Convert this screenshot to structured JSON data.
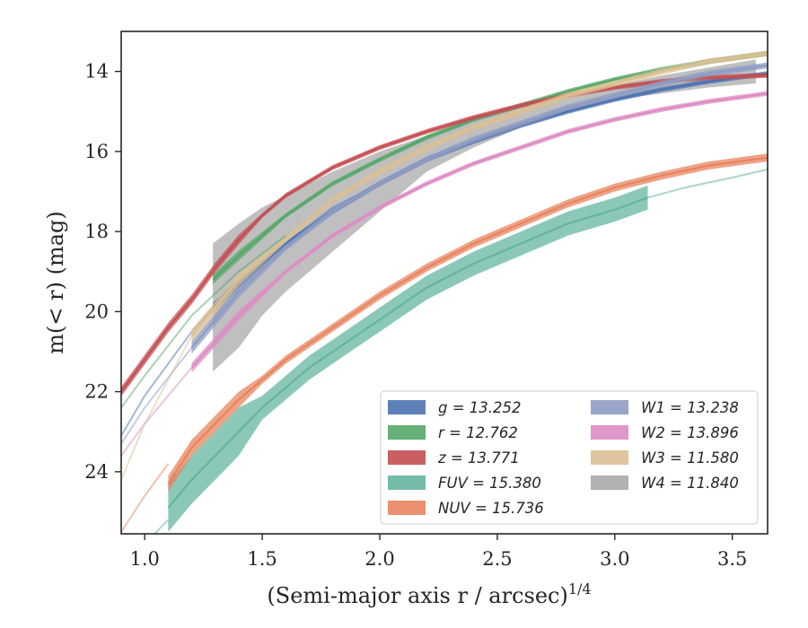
{
  "chart_data": {
    "type": "line",
    "title": "",
    "xlabel": "(Semi-major axis r / arcsec)",
    "xlabel_sup": "1/4",
    "ylabel": "m(< r) (mag)",
    "xlim": [
      0.9,
      3.65
    ],
    "ylim": [
      25.55,
      13.0
    ],
    "y_inverted": true,
    "grid": false,
    "legend_position": "lower-right",
    "x_ticks": [
      "1.0",
      "1.5",
      "2.0",
      "2.5",
      "3.0",
      "3.5"
    ],
    "y_ticks": [
      "14",
      "16",
      "18",
      "20",
      "22",
      "24"
    ],
    "series": [
      {
        "name": "g = 13.252",
        "color": "#4c72b0",
        "band": 0.12,
        "lower_x": [
          0.9,
          1.0,
          1.2,
          1.4,
          1.6,
          1.8,
          2.0
        ],
        "lower_y": [
          23.1,
          22.1,
          20.5,
          19.2,
          18.3,
          17.4,
          16.8
        ],
        "x": [
          1.29,
          1.4,
          1.6,
          1.8,
          2.0,
          2.2,
          2.4,
          2.6,
          2.8,
          3.0,
          3.2,
          3.4,
          3.65
        ],
        "y": [
          19.9,
          19.3,
          18.3,
          17.5,
          16.8,
          16.2,
          15.75,
          15.35,
          15.0,
          14.7,
          14.45,
          14.25,
          14.05
        ]
      },
      {
        "name": "r = 12.762",
        "color": "#55a868",
        "band": 0.12,
        "lower_x": [
          0.9,
          1.0,
          1.2,
          1.4,
          1.6
        ],
        "lower_y": [
          22.4,
          21.6,
          20.1,
          19.0,
          18.1
        ],
        "x": [
          1.29,
          1.4,
          1.6,
          1.8,
          2.0,
          2.2,
          2.4,
          2.6,
          2.8,
          3.0,
          3.2,
          3.4,
          3.65
        ],
        "y": [
          19.2,
          18.6,
          17.6,
          16.8,
          16.2,
          15.65,
          15.2,
          14.85,
          14.5,
          14.2,
          13.95,
          13.75,
          13.55
        ]
      },
      {
        "name": "z = 13.771",
        "color": "#c44e52",
        "band": 0.12,
        "lower_x": [],
        "lower_y": [],
        "x": [
          0.9,
          1.0,
          1.1,
          1.2,
          1.3,
          1.4,
          1.5,
          1.6,
          1.8,
          2.0,
          2.2,
          2.4,
          2.6,
          2.8,
          3.0,
          3.2,
          3.4,
          3.65
        ],
        "y": [
          22.0,
          21.2,
          20.4,
          19.7,
          18.9,
          18.2,
          17.6,
          17.1,
          16.4,
          15.9,
          15.5,
          15.15,
          14.85,
          14.6,
          14.4,
          14.25,
          14.15,
          14.1
        ]
      },
      {
        "name": "FUV = 15.380",
        "color": "#64b5a0",
        "band": 0.6,
        "lower_x": [
          0.9,
          1.0,
          1.1
        ],
        "lower_y": [
          26.3,
          25.8,
          25.2
        ],
        "x": [
          1.1,
          1.2,
          1.3,
          1.4,
          1.5,
          1.6,
          1.7,
          1.8,
          1.9,
          2.0,
          2.1,
          2.2,
          2.4,
          2.6,
          2.8,
          3.0,
          3.14
        ],
        "y": [
          24.9,
          24.2,
          23.6,
          23.0,
          22.4,
          21.9,
          21.4,
          21.0,
          20.6,
          20.2,
          19.8,
          19.4,
          18.8,
          18.3,
          17.8,
          17.45,
          17.15
        ],
        "tail_x": [
          3.14,
          3.3,
          3.5,
          3.65
        ],
        "tail_y": [
          17.15,
          16.9,
          16.65,
          16.45
        ]
      },
      {
        "name": "NUV = 15.736",
        "color": "#e8845e",
        "band": 0.2,
        "lower_x": [
          0.9,
          1.0,
          1.1
        ],
        "lower_y": [
          25.5,
          24.6,
          23.8
        ],
        "x": [
          1.1,
          1.2,
          1.3,
          1.4,
          1.5,
          1.6,
          1.7,
          1.8,
          1.9,
          2.0,
          2.2,
          2.4,
          2.6,
          2.8,
          3.0,
          3.2,
          3.4,
          3.65
        ],
        "y": [
          24.3,
          23.4,
          22.8,
          22.2,
          21.7,
          21.2,
          20.8,
          20.4,
          20.0,
          19.6,
          18.9,
          18.3,
          17.8,
          17.3,
          16.9,
          16.6,
          16.35,
          16.15
        ]
      },
      {
        "name": "W1 = 13.238",
        "color": "#8e9cc4",
        "band": 0.15,
        "lower_x": [
          0.9,
          1.0,
          1.2
        ],
        "lower_y": [
          23.3,
          22.4,
          20.9
        ],
        "x": [
          1.2,
          1.4,
          1.6,
          1.8,
          2.0,
          2.2,
          2.4,
          2.6,
          2.8,
          3.0,
          3.2,
          3.4,
          3.65
        ],
        "y": [
          20.9,
          19.5,
          18.4,
          17.5,
          16.8,
          16.2,
          15.7,
          15.3,
          14.9,
          14.6,
          14.3,
          14.05,
          13.85
        ]
      },
      {
        "name": "W2 = 13.896",
        "color": "#dd8cc4",
        "band": 0.12,
        "lower_x": [
          0.9,
          1.0,
          1.2
        ],
        "lower_y": [
          23.6,
          22.8,
          21.4
        ],
        "x": [
          1.2,
          1.4,
          1.6,
          1.8,
          2.0,
          2.2,
          2.4,
          2.6,
          2.8,
          3.0,
          3.2,
          3.4,
          3.65
        ],
        "y": [
          21.4,
          20.1,
          19.0,
          18.1,
          17.4,
          16.8,
          16.3,
          15.9,
          15.5,
          15.2,
          14.95,
          14.75,
          14.55
        ]
      },
      {
        "name": "W3 = 11.580",
        "color": "#dcc093",
        "band": 0.15,
        "lower_x": [
          0.9,
          1.0,
          1.2
        ],
        "lower_y": [
          24.2,
          22.8,
          20.6
        ],
        "x": [
          1.2,
          1.4,
          1.6,
          1.8,
          2.0,
          2.2,
          2.4,
          2.6,
          2.8,
          3.0,
          3.2,
          3.4,
          3.65
        ],
        "y": [
          20.6,
          19.2,
          18.2,
          17.2,
          16.5,
          15.9,
          15.4,
          15.0,
          14.6,
          14.3,
          14.0,
          13.75,
          13.55
        ]
      },
      {
        "name": "W4 = 11.840",
        "color": "#aaaaaa",
        "band": 0,
        "band_x": [
          1.29,
          1.4,
          1.5,
          1.6,
          1.7,
          1.8,
          2.0,
          2.2,
          2.4,
          2.6,
          2.8,
          3.0,
          3.2,
          3.4,
          3.6
        ],
        "band_top": [
          18.3,
          17.8,
          17.4,
          17.1,
          16.8,
          16.5,
          16.0,
          15.6,
          15.2,
          14.9,
          14.6,
          14.35,
          14.1,
          13.9,
          13.7
        ],
        "band_bottom": [
          21.5,
          20.9,
          20.1,
          19.5,
          19.0,
          18.5,
          17.5,
          16.5,
          15.9,
          15.4,
          15.0,
          14.7,
          14.55,
          14.4,
          14.3
        ],
        "x": [],
        "y": []
      }
    ]
  }
}
